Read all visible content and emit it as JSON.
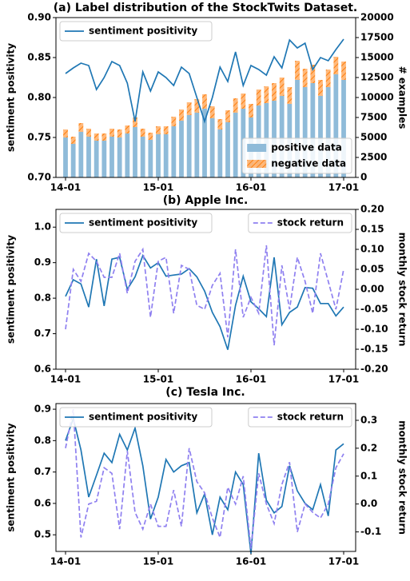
{
  "chart_data": [
    {
      "type": "bar",
      "title": "(a) Label distribution of the StockTwits Dataset.",
      "categories": [
        "14-01",
        null,
        null,
        null,
        null,
        null,
        null,
        null,
        null,
        null,
        null,
        null,
        "15-01",
        null,
        null,
        null,
        null,
        null,
        null,
        null,
        null,
        null,
        null,
        null,
        "16-01",
        null,
        null,
        null,
        null,
        null,
        null,
        null,
        null,
        null,
        null,
        null,
        "17-01"
      ],
      "ylabel": "sentiment positivity",
      "y2label": "# examples",
      "ylim": [
        0.7,
        0.9
      ],
      "yticks": [
        {
          "value": 0.7,
          "label": "0.70"
        },
        {
          "value": 0.75,
          "label": "0.75"
        },
        {
          "value": 0.8,
          "label": "0.80"
        },
        {
          "value": 0.85,
          "label": "0.85"
        },
        {
          "value": 0.9,
          "label": "0.90"
        }
      ],
      "y2lim": [
        0,
        20000
      ],
      "y2ticks": [
        0,
        2500,
        5000,
        7500,
        10000,
        12500,
        15000,
        17500,
        20000
      ],
      "stacked": true,
      "series": [
        {
          "name": "sentiment positivity",
          "kind": "line",
          "color": "#1f77b4",
          "legend": "upper left",
          "values": [
            0.83,
            0.837,
            0.843,
            0.84,
            0.81,
            0.825,
            0.845,
            0.84,
            0.818,
            0.77,
            0.832,
            0.808,
            0.832,
            0.825,
            0.815,
            0.838,
            0.83,
            0.8,
            0.77,
            0.8,
            0.838,
            0.82,
            0.857,
            0.815,
            0.84,
            0.835,
            0.828,
            0.851,
            0.837,
            0.872,
            0.862,
            0.868,
            0.835,
            0.85,
            0.846,
            0.86,
            0.873
          ]
        },
        {
          "name": "positive data",
          "kind": "bar",
          "axis": "y2",
          "color": "#8fbbd9",
          "legend": "lower right",
          "values": [
            5000,
            4200,
            5700,
            5100,
            4600,
            4600,
            5100,
            5000,
            5500,
            6300,
            5100,
            4700,
            5400,
            5400,
            6400,
            7100,
            7800,
            8100,
            8600,
            7400,
            6000,
            6900,
            8100,
            8600,
            7500,
            9000,
            9300,
            9600,
            10200,
            9200,
            12200,
            11300,
            11800,
            10200,
            11300,
            12900,
            12200
          ]
        },
        {
          "name": "negative data",
          "kind": "bar",
          "axis": "y2",
          "color": "#ff7f0e",
          "hatch": true,
          "legend": "lower right",
          "values": [
            1000,
            900,
            1100,
            1000,
            900,
            900,
            1000,
            1000,
            1000,
            1200,
            1000,
            900,
            1000,
            1000,
            1200,
            1400,
            1600,
            1700,
            1800,
            1500,
            1300,
            1500,
            1800,
            1900,
            1700,
            2000,
            2100,
            2200,
            2300,
            2100,
            2400,
            2300,
            2300,
            2000,
            2200,
            2200,
            2300
          ]
        }
      ]
    },
    {
      "type": "line",
      "title": "(b) Apple Inc.",
      "categories": [
        "14-01",
        null,
        null,
        null,
        null,
        null,
        null,
        null,
        null,
        null,
        null,
        null,
        "15-01",
        null,
        null,
        null,
        null,
        null,
        null,
        null,
        null,
        null,
        null,
        null,
        "16-01",
        null,
        null,
        null,
        null,
        null,
        null,
        null,
        null,
        null,
        null,
        null,
        "17-01"
      ],
      "ylabel": "sentiment positivity",
      "y2label": "monthly stock return",
      "ylim": [
        0.6,
        1.05
      ],
      "yticks": [
        0.6,
        0.7,
        0.8,
        0.9,
        {
          "value": 1,
          "label": "1.0"
        }
      ],
      "y2lim": [
        -0.2,
        0.2
      ],
      "y2ticks": [
        {
          "value": -0.2,
          "label": "-0.20"
        },
        {
          "value": -0.15,
          "label": "-0.15"
        },
        {
          "value": -0.1,
          "label": "-0.10"
        },
        {
          "value": -0.05,
          "label": "-0.05"
        },
        {
          "value": 0,
          "label": "0.00"
        },
        {
          "value": 0.05,
          "label": "0.05"
        },
        {
          "value": 0.1,
          "label": "0.10"
        },
        {
          "value": 0.15,
          "label": "0.15"
        },
        {
          "value": 0.2,
          "label": "0.20"
        }
      ],
      "series": [
        {
          "name": "sentiment positivity",
          "kind": "line",
          "color": "#1f77b4",
          "legend": "upper left",
          "values": [
            0.805,
            0.852,
            0.84,
            0.775,
            0.91,
            0.778,
            0.91,
            0.915,
            0.825,
            0.86,
            0.92,
            0.885,
            0.9,
            0.862,
            0.865,
            0.868,
            0.883,
            0.86,
            0.82,
            0.76,
            0.72,
            0.655,
            0.78,
            0.862,
            0.79,
            0.77,
            0.748,
            0.915,
            0.725,
            0.76,
            0.775,
            0.83,
            0.828,
            0.785,
            0.785,
            0.75,
            0.775
          ]
        },
        {
          "name": "stock return",
          "kind": "line",
          "axis": "y2",
          "color": "#8f80f0",
          "linestyle": "dashed",
          "legend": "upper right",
          "values": [
            -0.1,
            0.05,
            0.02,
            0.09,
            0.07,
            0.03,
            0.03,
            0.09,
            -0.01,
            0.07,
            0.1,
            -0.07,
            0.07,
            0.08,
            -0.06,
            0.06,
            0.05,
            -0.04,
            -0.05,
            0.01,
            0.04,
            -0.12,
            0.1,
            -0.07,
            -0.02,
            -0.06,
            0.11,
            -0.14,
            0.06,
            -0.05,
            0.08,
            0.02,
            -0.06,
            0.09,
            0.02,
            -0.05,
            0.05
          ]
        }
      ]
    },
    {
      "type": "line",
      "title": "(c) Tesla Inc.",
      "categories": [
        "14-01",
        null,
        null,
        null,
        null,
        null,
        null,
        null,
        null,
        null,
        null,
        null,
        "15-01",
        null,
        null,
        null,
        null,
        null,
        null,
        null,
        null,
        null,
        null,
        null,
        "16-01",
        null,
        null,
        null,
        null,
        null,
        null,
        null,
        null,
        null,
        null,
        null,
        "17-01"
      ],
      "ylabel": "sentiment positivity",
      "y2label": "monthly stock return",
      "ylim": [
        0.447,
        0.918
      ],
      "yticks": [
        0.5,
        0.6,
        0.7,
        0.8,
        0.9
      ],
      "y2lim": [
        -0.17,
        0.36
      ],
      "y2ticks": [
        -0.1,
        {
          "value": 0,
          "label": "0.0"
        },
        0.1,
        0.2,
        0.3
      ],
      "series": [
        {
          "name": "sentiment positivity",
          "kind": "line",
          "color": "#1f77b4",
          "legend": "upper left",
          "values": [
            0.8,
            0.87,
            0.77,
            0.62,
            0.69,
            0.76,
            0.73,
            0.82,
            0.77,
            0.84,
            0.72,
            0.55,
            0.62,
            0.74,
            0.7,
            0.72,
            0.73,
            0.57,
            0.63,
            0.5,
            0.62,
            0.58,
            0.7,
            0.66,
            0.44,
            0.76,
            0.61,
            0.57,
            0.59,
            0.72,
            0.64,
            0.6,
            0.58,
            0.66,
            0.56,
            0.77,
            0.79
          ]
        },
        {
          "name": "stock return",
          "kind": "line",
          "axis": "y2",
          "color": "#8f80f0",
          "linestyle": "dashed",
          "legend": "upper right",
          "values": [
            0.2,
            0.34,
            -0.12,
            0.0,
            0.01,
            0.13,
            0.11,
            -0.09,
            0.19,
            -0.03,
            -0.09,
            0.0,
            -0.08,
            -0.08,
            0.05,
            -0.08,
            0.2,
            0.08,
            0.04,
            -0.05,
            -0.12,
            0.06,
            0.0,
            0.1,
            -0.16,
            0.11,
            0.0,
            -0.07,
            0.07,
            0.15,
            -0.1,
            0.0,
            -0.03,
            -0.05,
            0.0,
            0.13,
            0.18
          ]
        }
      ]
    }
  ]
}
